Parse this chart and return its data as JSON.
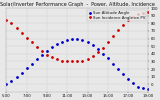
{
  "title": "Solar/Inverter Performance Graph  -  Power, Altitude, Incidence",
  "bg_color": "#e8e8e8",
  "plot_bg": "#e8e8e8",
  "grid_color": "#aaaaaa",
  "text_color": "#111111",
  "series": [
    {
      "label": "Sun Altitude Angle",
      "color": "#0000cc",
      "marker": ".",
      "markersize": 2.0,
      "x": [
        5.0,
        5.5,
        6.0,
        6.5,
        7.0,
        7.5,
        8.0,
        8.5,
        9.0,
        9.5,
        10.0,
        10.5,
        11.0,
        11.5,
        12.0,
        12.5,
        13.0,
        13.5,
        14.0,
        14.5,
        15.0,
        15.5,
        16.0,
        16.5,
        17.0,
        17.5,
        18.0,
        18.5,
        19.0
      ],
      "y": [
        0,
        4,
        9,
        15,
        21,
        27,
        33,
        39,
        44,
        49,
        53,
        56,
        58,
        59,
        59,
        58,
        55,
        51,
        46,
        40,
        34,
        27,
        20,
        13,
        7,
        1,
        -3,
        -5,
        -6
      ]
    },
    {
      "label": "Sun Incidence Angle on PV",
      "color": "#cc0000",
      "marker": ".",
      "markersize": 2.0,
      "x": [
        5.0,
        5.5,
        6.0,
        6.5,
        7.0,
        7.5,
        8.0,
        8.5,
        9.0,
        9.5,
        10.0,
        10.5,
        11.0,
        11.5,
        12.0,
        12.5,
        13.0,
        13.5,
        14.0,
        14.5,
        15.0,
        15.5,
        16.0,
        16.5,
        17.0,
        17.5,
        18.0,
        18.5,
        19.0
      ],
      "y": [
        85,
        80,
        74,
        67,
        61,
        55,
        49,
        44,
        39,
        36,
        33,
        31,
        30,
        30,
        30,
        31,
        33,
        37,
        42,
        48,
        55,
        63,
        71,
        78,
        84,
        89,
        92,
        94,
        95
      ]
    }
  ],
  "xlim": [
    5.0,
    19.0
  ],
  "ylim": [
    -10,
    100
  ],
  "yticks": [
    0,
    10,
    20,
    30,
    40,
    50,
    60,
    70,
    80,
    90,
    100
  ],
  "xtick_labels": [
    "5:00",
    "7:00",
    "9:00",
    "11:00",
    "13:00",
    "15:00",
    "17:00",
    "19:00"
  ],
  "xtick_values": [
    5,
    7,
    9,
    11,
    13,
    15,
    17,
    19
  ],
  "title_fontsize": 3.5,
  "tick_fontsize": 2.8,
  "legend_fontsize": 2.8
}
